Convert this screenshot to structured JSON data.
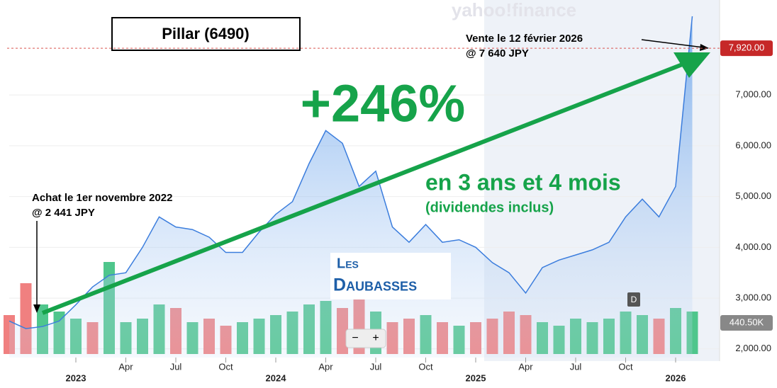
{
  "chart_data": {
    "type": "area",
    "title": "Pillar (6490)",
    "watermark": "yahoo!finance",
    "x": [
      "2022-09",
      "2022-10",
      "2022-11",
      "2022-12",
      "2023-01",
      "2023-02",
      "2023-03",
      "2023-04",
      "2023-05",
      "2023-06",
      "2023-07",
      "2023-08",
      "2023-09",
      "2023-10",
      "2023-11",
      "2023-12",
      "2024-01",
      "2024-02",
      "2024-03",
      "2024-04",
      "2024-05",
      "2024-06",
      "2024-07",
      "2024-08",
      "2024-09",
      "2024-10",
      "2024-11",
      "2024-12",
      "2025-01",
      "2025-02",
      "2025-03",
      "2025-04",
      "2025-05",
      "2025-06",
      "2025-07",
      "2025-08",
      "2025-09",
      "2025-10",
      "2025-11",
      "2025-12",
      "2026-01",
      "2026-02"
    ],
    "series": [
      {
        "color": "#3b7ddd",
        "values": [
          2550,
          2400,
          2441,
          2550,
          2870,
          3220,
          3450,
          3500,
          4000,
          4600,
          4400,
          4350,
          4200,
          3900,
          3900,
          4300,
          4650,
          4900,
          5650,
          6300,
          6050,
          5200,
          5500,
          4400,
          4100,
          4450,
          4100,
          4150,
          4000,
          3700,
          3500,
          3100,
          3600,
          3750,
          3850,
          3950,
          4100,
          4600,
          4950,
          4600,
          5200,
          8550
        ]
      }
    ],
    "volume": {
      "values": [
        550,
        1000,
        700,
        600,
        500,
        450,
        1300,
        450,
        500,
        700,
        650,
        450,
        500,
        400,
        450,
        500,
        550,
        600,
        700,
        750,
        650,
        800,
        600,
        450,
        500,
        550,
        450,
        400,
        450,
        500,
        600,
        550,
        450,
        400,
        500,
        450,
        500,
        600,
        550,
        500,
        650,
        600
      ],
      "colors": [
        "#f08080",
        "#f08080",
        "#4fc68c",
        "#4fc68c",
        "#4fc68c",
        "#f08080",
        "#4fc68c",
        "#4fc68c",
        "#4fc68c",
        "#4fc68c",
        "#f08080",
        "#4fc68c",
        "#f08080",
        "#f08080",
        "#4fc68c",
        "#4fc68c",
        "#4fc68c",
        "#4fc68c",
        "#4fc68c",
        "#4fc68c",
        "#f08080",
        "#f08080",
        "#4fc68c",
        "#f08080",
        "#f08080",
        "#4fc68c",
        "#f08080",
        "#4fc68c",
        "#f08080",
        "#f08080",
        "#f08080",
        "#f08080",
        "#4fc68c",
        "#4fc68c",
        "#4fc68c",
        "#4fc68c",
        "#4fc68c",
        "#4fc68c",
        "#4fc68c",
        "#f08080",
        "#4fc68c",
        "#4fc68c"
      ],
      "y2lim": [
        0,
        5000
      ],
      "last": {
        "value": 440.5,
        "label": "440.50K"
      }
    },
    "xlim": [
      "2022-09",
      "2026-03"
    ],
    "xticks": [
      {
        "value": "2023-01",
        "label": "2023"
      },
      {
        "value": "2023-04",
        "label": "Apr"
      },
      {
        "value": "2023-07",
        "label": "Jul"
      },
      {
        "value": "2023-10",
        "label": "Oct"
      },
      {
        "value": "2024-01",
        "label": "2024"
      },
      {
        "value": "2024-04",
        "label": "Apr"
      },
      {
        "value": "2024-07",
        "label": "Jul"
      },
      {
        "value": "2024-10",
        "label": "Oct"
      },
      {
        "value": "2025-01",
        "label": "2025"
      },
      {
        "value": "2025-04",
        "label": "Apr"
      },
      {
        "value": "2025-07",
        "label": "Jul"
      },
      {
        "value": "2025-10",
        "label": "Oct"
      },
      {
        "value": "2026-01",
        "label": "2026"
      }
    ],
    "ylim": [
      1830,
      8870
    ],
    "yticks": [
      {
        "value": 2000,
        "label": "2,000.00"
      },
      {
        "value": 3000,
        "label": "3,000.00"
      },
      {
        "value": 4000,
        "label": "4,000.00"
      },
      {
        "value": 5000,
        "label": "5,000.00"
      },
      {
        "value": 6000,
        "label": "6,000.00"
      },
      {
        "value": 7000,
        "label": "7,000.00"
      }
    ],
    "last_price": {
      "value": 7920,
      "label": "7,920.00"
    },
    "annotations": {
      "sell": [
        "Vente le 12 février 2026",
        "@ 7 640 JPY"
      ],
      "buy": [
        "Achat le 1er novembre 2022",
        "@ 2 441 JPY"
      ],
      "gain": "+246%",
      "duration": "en 3 ans et 4 mois",
      "note": "(dividendes inclus)",
      "logo": [
        "Les",
        "Daubasses"
      ],
      "dividend_marker": "D",
      "zoom": [
        "−",
        "+"
      ]
    }
  }
}
